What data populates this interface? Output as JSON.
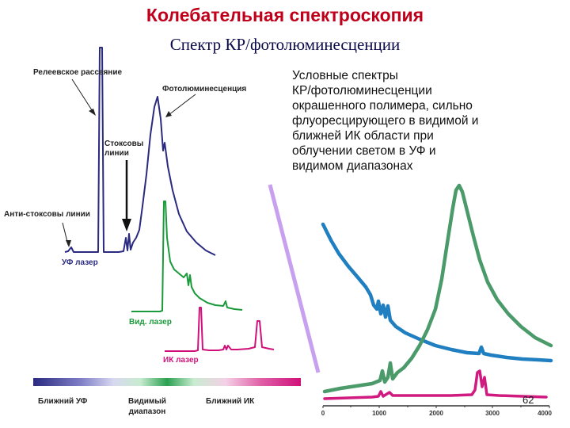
{
  "header": {
    "title": "Колебательная спектроскопия",
    "subtitle": "Спектр КР/фотолюминесценции"
  },
  "left_diagram": {
    "labels": {
      "rayleigh": "Релеевское рассеяние",
      "photoluminescence": "Фотолюминесценция",
      "stokes_line1": "Стоксовы",
      "stokes_line2": "линии",
      "anti_stokes": "Анти-стоксовы линии"
    },
    "lasers": {
      "uv": "УФ лазер",
      "visible": "Вид. лазер",
      "ir": "ИК лазер"
    },
    "colors": {
      "uv": "#2a2a80",
      "visible": "#1a9a3a",
      "ir": "#d0107a"
    },
    "regions": {
      "near_uv": "Ближний УФ",
      "visible_line1": "Видимый",
      "visible_line2": "диапазон",
      "near_ir": "Ближний ИК"
    }
  },
  "description": {
    "lines": [
      "Условные спектры",
      "КР/фотолюминесценции",
      "окрашенного полимера, сильно",
      "флуоресцирующего в видимой и",
      "ближней ИК области при",
      "облучении светом в УФ и",
      "видимом диапазонах"
    ]
  },
  "right_chart": {
    "x_ticks": [
      "0",
      "1000",
      "2000",
      "3000",
      "4000"
    ],
    "xlim": [
      0,
      4000
    ],
    "colors": {
      "uv": "#1f7fc0",
      "visible": "#4a9a6a",
      "ir": "#d01a80"
    }
  },
  "page_number": "62"
}
